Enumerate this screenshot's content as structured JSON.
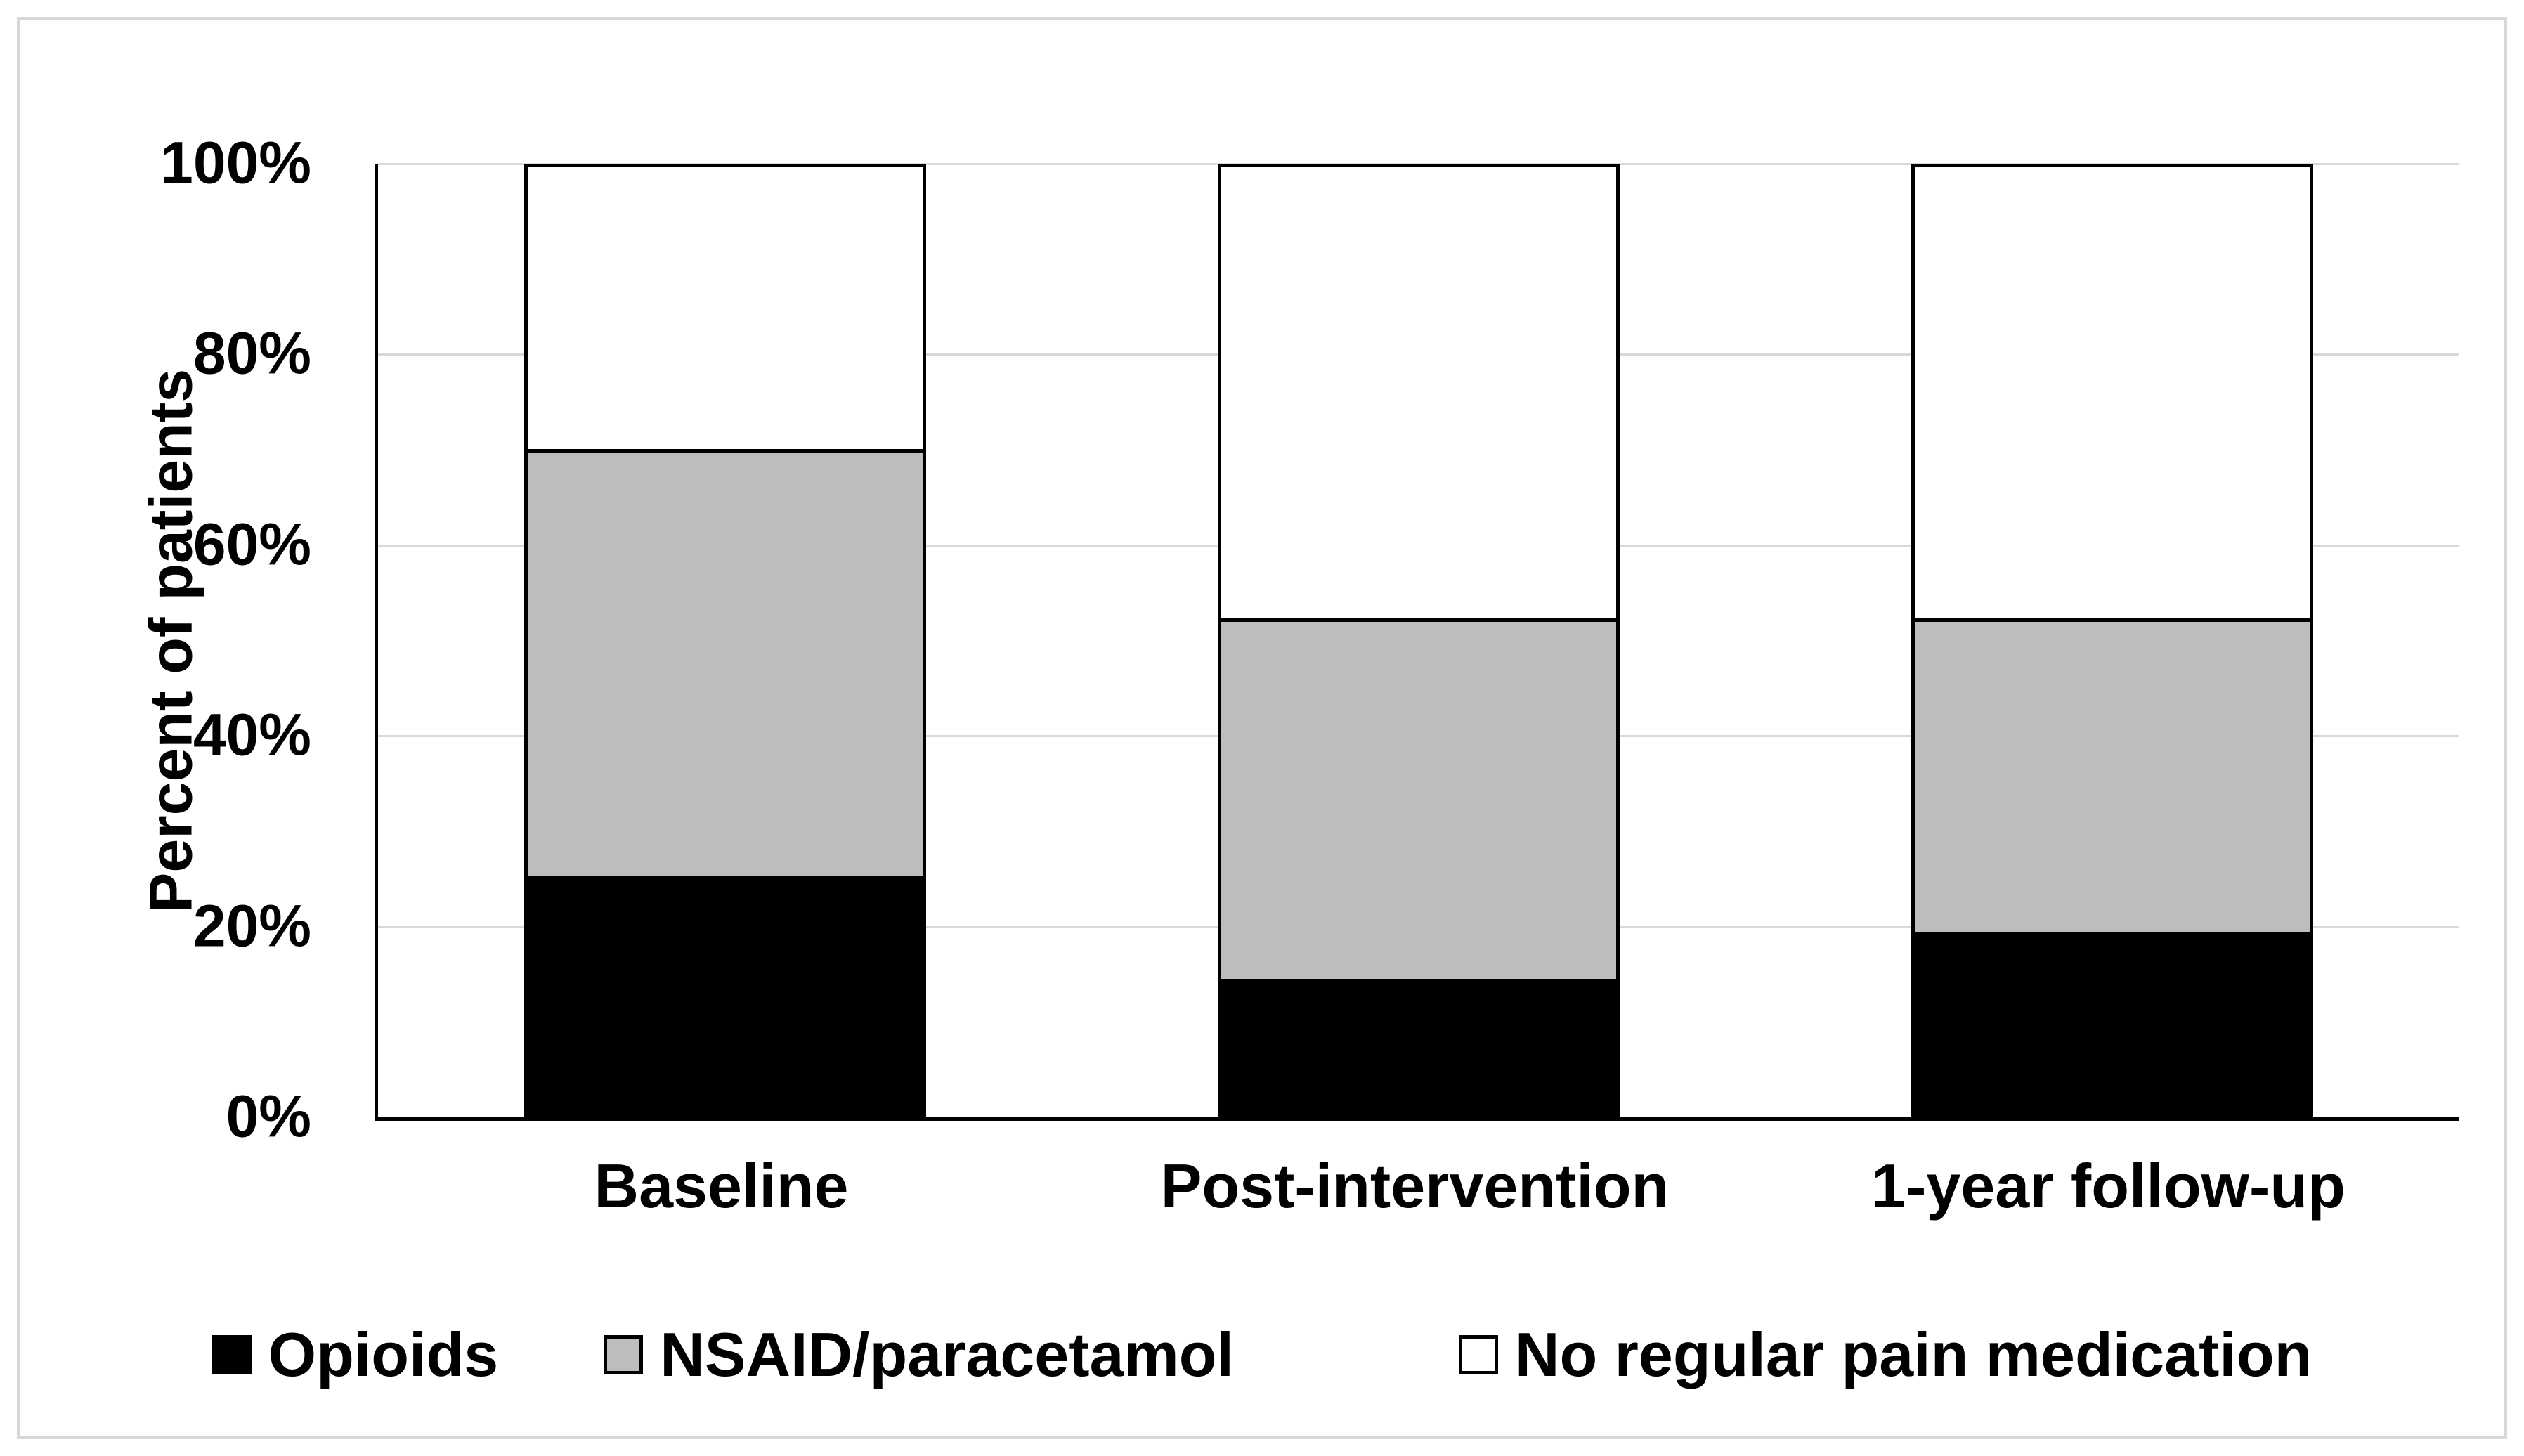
{
  "chart_data": {
    "type": "bar",
    "stacked": true,
    "percent_stacked": true,
    "title": "",
    "ylabel": "Percent of patients",
    "xlabel": "",
    "categories": [
      "Baseline",
      "Post-intervention",
      "1-year follow-up"
    ],
    "series": [
      {
        "name": "Opioids",
        "color": "#000000",
        "values": [
          25,
          14,
          19
        ]
      },
      {
        "name": "NSAID/paracetamol",
        "color": "#bdbdbd",
        "values": [
          45,
          38,
          33
        ]
      },
      {
        "name": "No regular pain medication",
        "color": "#ffffff",
        "values": [
          30,
          48,
          48
        ]
      }
    ],
    "yticks": [
      "0%",
      "20%",
      "40%",
      "60%",
      "80%",
      "100%"
    ],
    "ytick_values": [
      0,
      20,
      40,
      60,
      80,
      100
    ],
    "ylim": [
      0,
      100
    ],
    "grid": "horizontal",
    "gridline_color": "#d9d9d9",
    "axis_color": "#000000",
    "bar_outline_color": "#000000",
    "frame_color": "#d8d8d8",
    "legend_position": "bottom"
  }
}
